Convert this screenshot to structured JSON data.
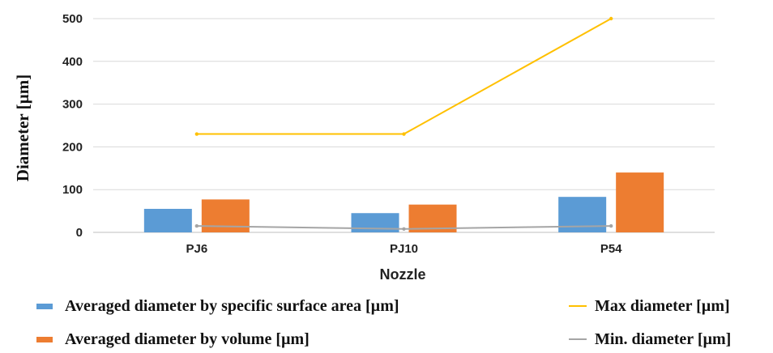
{
  "chart_data": {
    "type": "bar",
    "categories": [
      "PJ6",
      "PJ10",
      "P54"
    ],
    "xlabel": "Nozzle",
    "ylabel": "Diameter [µm]",
    "ylim": [
      0,
      500
    ],
    "yticks": [
      0,
      100,
      200,
      300,
      400,
      500
    ],
    "grid": true,
    "legend_position": "bottom",
    "series": [
      {
        "name": "Averaged diameter by specific surface area [µm]",
        "kind": "bar",
        "color": "#5B9BD5",
        "values": [
          55,
          45,
          83
        ]
      },
      {
        "name": "Averaged diameter by volume [µm]",
        "kind": "bar",
        "color": "#ED7D31",
        "values": [
          77,
          65,
          140
        ]
      },
      {
        "name": "Max diameter [µm]",
        "kind": "line",
        "color": "#FFC000",
        "values": [
          230,
          230,
          500
        ]
      },
      {
        "name": "Min. diameter [µm]",
        "kind": "line",
        "color": "#A5A5A5",
        "values": [
          15,
          8,
          15
        ]
      }
    ]
  }
}
